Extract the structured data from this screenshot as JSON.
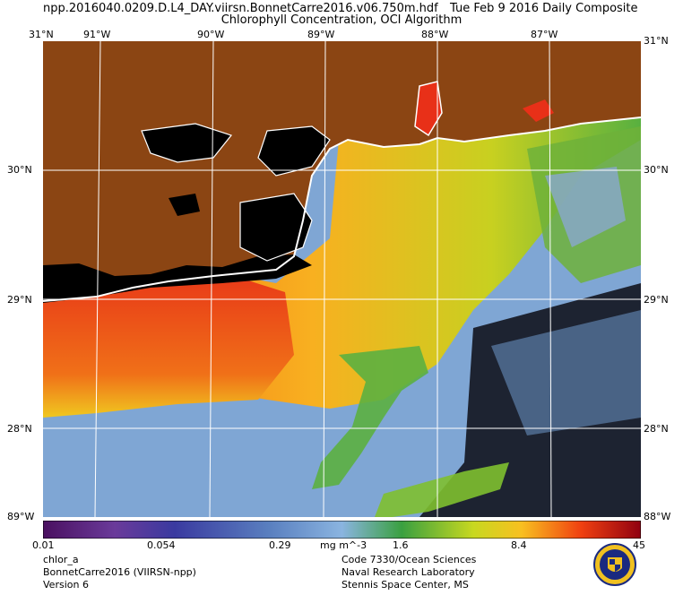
{
  "header": {
    "filename": "npp.2016040.0209.D.L4_DAY.viirsn.BonnetCarre2016.v06.750m.hdf",
    "date": "Tue Feb  9 2016 Daily Composite",
    "subtitle": "Chlorophyll Concentration, OCI Algorithm"
  },
  "axes": {
    "lon_labels": [
      "91°W",
      "90°W",
      "89°W",
      "88°W",
      "87°W"
    ],
    "lat_labels": [
      "30°N",
      "29°N",
      "28°N"
    ],
    "corner_top_left": "31°N",
    "corner_top_right": "31°N",
    "corner_bottom_left": "89°W",
    "corner_bottom_right": "88°W"
  },
  "colorbar": {
    "ticks": [
      "0.01",
      "0.054",
      "0.29",
      "1.6",
      "8.4",
      "45"
    ],
    "units": "mg m^-3",
    "colors": [
      "#5a1a7a",
      "#3a3aa0",
      "#6fa0d8",
      "#4ab04a",
      "#f0d020",
      "#f06010",
      "#c00010"
    ]
  },
  "footer": {
    "left": [
      "chlor_a",
      "BonnetCarre2016 (VIIRSN-npp)",
      "Version 6"
    ],
    "right": [
      "Code 7330/Ocean Sciences",
      "Naval Research Laboratory",
      "Stennis Space Center, MS"
    ]
  },
  "legend_colors": {
    "land": "#8b4513",
    "no_data": "#000000",
    "coast": "#ffffff"
  }
}
